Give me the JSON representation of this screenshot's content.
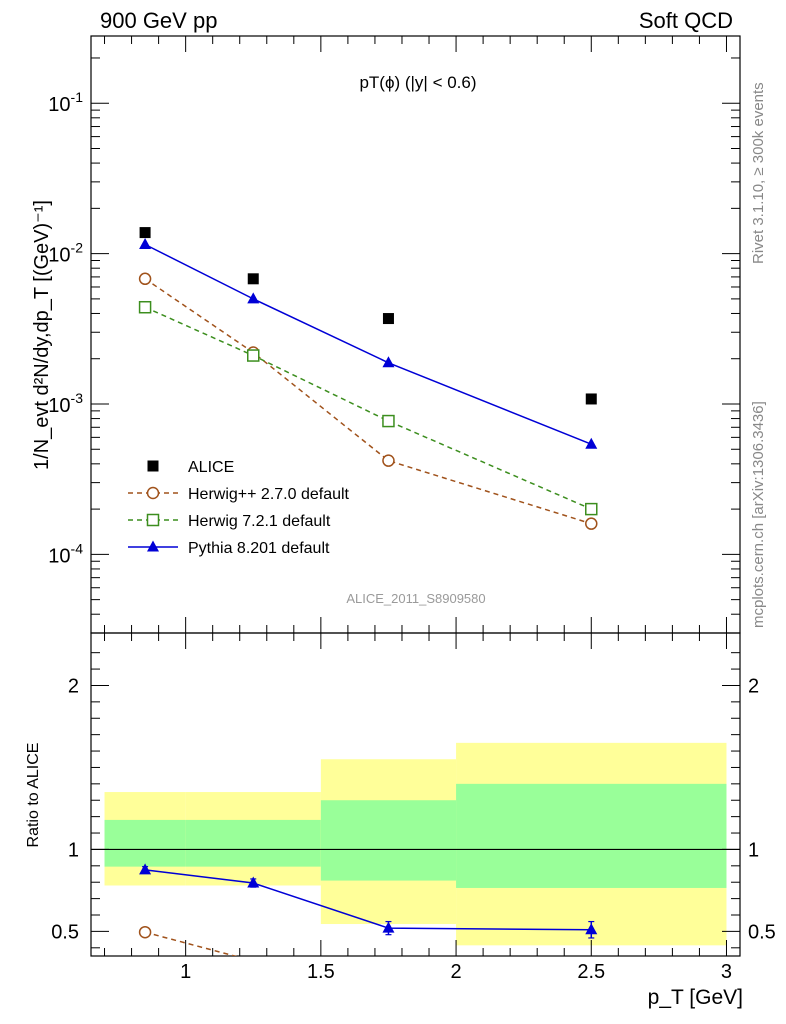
{
  "header": {
    "left_title": "900 GeV pp",
    "right_title": "Soft QCD"
  },
  "side_text": {
    "rivet": "Rivet 3.1.10, ≥ 300k events",
    "mcplots": "mcplots.cern.ch [arXiv:1306.3436]"
  },
  "chart_data": [
    {
      "type": "scatter",
      "title": "pT(ϕ) (|y| < 0.6)",
      "analysis_label": "ALICE_2011_S8909580",
      "ylabel": "1/N_evt d²N/dy,dp_T [(GeV)⁻¹]",
      "yscale": "log",
      "ylim": [
        3e-05,
        0.28
      ],
      "xlim": [
        0.65,
        3.05
      ],
      "yticks_major": [
        "10^-4",
        "10^-3",
        "10^-2",
        "10^-1"
      ],
      "legend_position": "bottom-left",
      "x": [
        0.85,
        1.25,
        1.75,
        2.5
      ],
      "series": [
        {
          "name": "ALICE",
          "marker": "filled-square",
          "color": "#000000",
          "values": [
            0.0138,
            0.0068,
            0.0037,
            0.00108
          ]
        },
        {
          "name": "Herwig++ 2.7.0 default",
          "marker": "open-circle",
          "line": "dashed",
          "color": "#a0521b",
          "values": [
            0.0068,
            0.0022,
            0.00042,
            0.00016
          ]
        },
        {
          "name": "Herwig 7.2.1 default",
          "marker": "open-square",
          "line": "dashed",
          "color": "#3c8e1e",
          "values": [
            0.0044,
            0.0021,
            0.00077,
            0.0002
          ]
        },
        {
          "name": "Pythia 8.201 default",
          "marker": "filled-triangle",
          "line": "solid",
          "color": "#0000d6",
          "values": [
            0.0115,
            0.005,
            0.00188,
            0.00054
          ]
        }
      ]
    },
    {
      "type": "line",
      "ylabel": "Ratio to ALICE",
      "xlabel": "p_T [GeV]",
      "ylim": [
        0.35,
        2.32
      ],
      "xlim": [
        0.65,
        3.05
      ],
      "xticks": [
        "1",
        "1.5",
        "2",
        "2.5",
        "3"
      ],
      "yticks": [
        "0.5",
        "1",
        "2"
      ],
      "bands": [
        {
          "x_range": [
            0.7,
            1.0
          ],
          "yellow": [
            0.78,
            1.35
          ],
          "green": [
            0.895,
            1.18
          ]
        },
        {
          "x_range": [
            1.0,
            1.5
          ],
          "yellow": [
            0.78,
            1.35
          ],
          "green": [
            0.895,
            1.18
          ]
        },
        {
          "x_range": [
            1.5,
            2.0
          ],
          "yellow": [
            0.545,
            1.55
          ],
          "green": [
            0.81,
            1.3
          ]
        },
        {
          "x_range": [
            2.0,
            3.0
          ],
          "yellow": [
            0.415,
            1.65
          ],
          "green": [
            0.765,
            1.4
          ]
        }
      ],
      "series": [
        {
          "name": "Herwig++ 2.7.0 default",
          "color": "#a0521b",
          "x": [
            0.85,
            1.25
          ],
          "values": [
            0.495,
            0.32
          ]
        },
        {
          "name": "Pythia 8.201 default",
          "color": "#0000d6",
          "x": [
            0.85,
            1.25,
            1.75,
            2.5
          ],
          "values": [
            0.875,
            0.795,
            0.52,
            0.51
          ],
          "errors": [
            0.02,
            0.025,
            0.04,
            0.05
          ]
        }
      ]
    }
  ]
}
